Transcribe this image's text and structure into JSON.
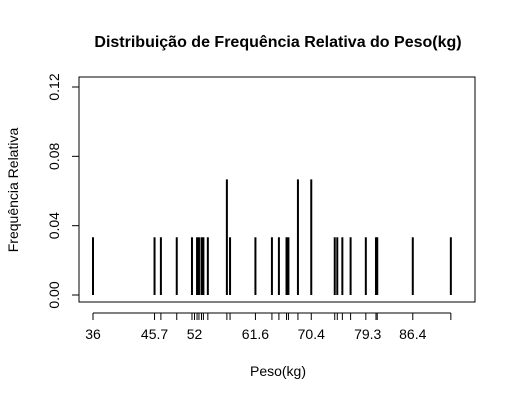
{
  "chart_data": {
    "type": "bar",
    "title": "Distribuição de Frequência Relativa do Peso(kg)",
    "xlabel": "Peso(kg)",
    "ylabel": "Frequência Relativa",
    "xlim": [
      36,
      94
    ],
    "ylim": [
      0,
      0.12
    ],
    "x_tick_values": [
      36,
      45.7,
      52,
      61.6,
      70.4,
      79.3,
      86.4
    ],
    "x_tick_labels": [
      "36",
      "45.7",
      "52",
      "61.6",
      "70.4",
      "79.3",
      "86.4"
    ],
    "x_minor_ticks": [
      36,
      45.7,
      46.7,
      49.2,
      51.6,
      52,
      52.4,
      52.7,
      53.1,
      53.4,
      54.1,
      57.1,
      57.6,
      61.6,
      64.2,
      65.3,
      66.5,
      66.8,
      68.3,
      70.4,
      74.1,
      74.5,
      75.3,
      76.6,
      79,
      80.6,
      80.8,
      86.4,
      92.4
    ],
    "y_tick_values": [
      0,
      0.04,
      0.08,
      0.12
    ],
    "y_tick_labels": [
      "0.00",
      "0.04",
      "0.08",
      "0.12"
    ],
    "x": [
      36,
      45.7,
      46.7,
      49.2,
      51.6,
      52.4,
      52.7,
      53.1,
      53.4,
      54.1,
      57.1,
      57.6,
      61.6,
      64.2,
      65.3,
      66.5,
      66.8,
      68.3,
      70.4,
      74.1,
      74.5,
      75.3,
      76.6,
      79,
      80.6,
      80.8,
      86.4,
      92.4
    ],
    "values": [
      0.0333,
      0.0333,
      0.0333,
      0.0333,
      0.0333,
      0.0333,
      0.0333,
      0.0333,
      0.0333,
      0.0333,
      0.0667,
      0.0333,
      0.0333,
      0.0333,
      0.0333,
      0.0333,
      0.0333,
      0.0667,
      0.0667,
      0.0333,
      0.0333,
      0.0333,
      0.0333,
      0.0333,
      0.0333,
      0.0333,
      0.0333,
      0.0333
    ]
  }
}
